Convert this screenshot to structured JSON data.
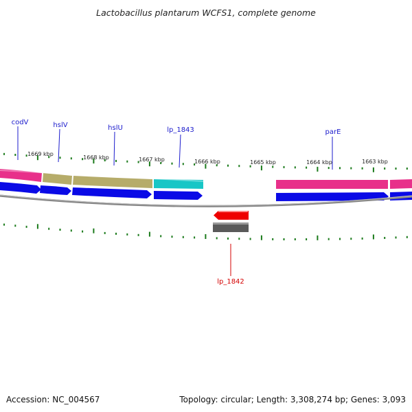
{
  "title": "Lactobacillus plantarum WCFS1, complete genome",
  "footer": {
    "accession": "Accession: NC_004567",
    "summary": "Topology: circular; Length: 3,308,274 bp; Genes: 3,093"
  },
  "colors": {
    "outer_tick": "#1a7a1a",
    "backbone": "#888888",
    "cds_forward": "#0a0ae6",
    "cds_reverse": "#ee0000",
    "reverse_gene_bar": "#5a5a5a",
    "label_forward": "#1a1acc",
    "label_reverse": "#d40000"
  },
  "kbp_labels": [
    "1669 kbp",
    "1668 kbp",
    "1667 kbp",
    "1666 kbp",
    "1665 kbp",
    "1664 kbp",
    "1663 kbp"
  ],
  "genes": [
    {
      "label": "codV",
      "strand": "forward",
      "cog_color": "#e8308a"
    },
    {
      "label": "hslV",
      "strand": "forward",
      "cog_color": "#b6ac6a"
    },
    {
      "label": "hslU",
      "strand": "forward",
      "cog_color": "#b6ac6a"
    },
    {
      "label": "lp_1843",
      "strand": "forward",
      "cog_color": "#18c6c6"
    },
    {
      "label": "lp_1842",
      "strand": "reverse",
      "cog_color": "#5a5a5a"
    },
    {
      "label": "parE",
      "strand": "forward",
      "cog_color": "#e8308a"
    }
  ]
}
